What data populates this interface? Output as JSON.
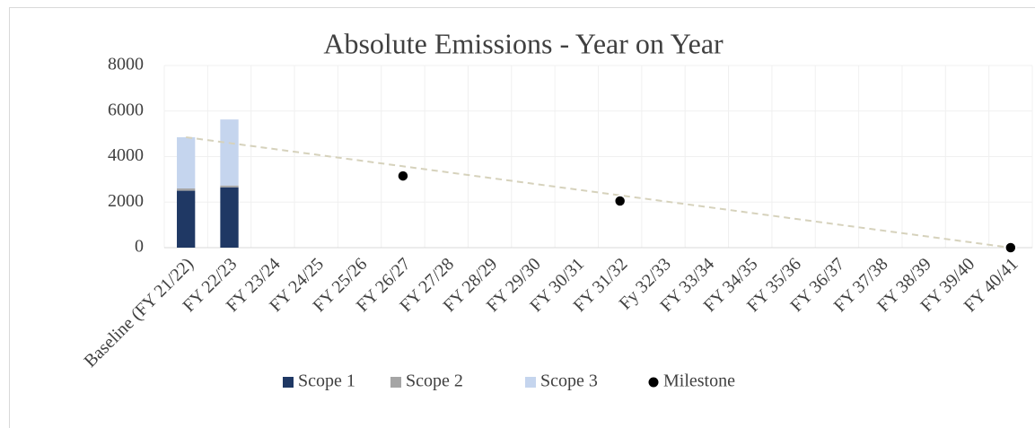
{
  "chart_data": {
    "type": "bar",
    "stacked": true,
    "title": "Absolute Emissions - Year on Year",
    "categories": [
      "Baseline (FY 21/22)",
      "FY 22/23",
      "FY 23/24",
      "FY 24/25",
      "FY 25/26",
      "FY 26/27",
      "FY 27/28",
      "FY 28/29",
      "FY 29/30",
      "FY 30/31",
      "FY 31/32",
      "Fy 32/33",
      "FY 33/34",
      "FY 34/35",
      "FY 35/36",
      "FY 36/37",
      "FY 37/38",
      "FY 38/39",
      "FY 39/40",
      "FY 40/41"
    ],
    "series": [
      {
        "name": "Scope 1",
        "color": "#1f3864",
        "values": [
          2500,
          2650,
          null,
          null,
          null,
          null,
          null,
          null,
          null,
          null,
          null,
          null,
          null,
          null,
          null,
          null,
          null,
          null,
          null,
          null
        ]
      },
      {
        "name": "Scope 2",
        "color": "#a5a5a5",
        "values": [
          100,
          80,
          null,
          null,
          null,
          null,
          null,
          null,
          null,
          null,
          null,
          null,
          null,
          null,
          null,
          null,
          null,
          null,
          null,
          null
        ]
      },
      {
        "name": "Scope 3",
        "color": "#c5d5ee",
        "values": [
          2250,
          2900,
          null,
          null,
          null,
          null,
          null,
          null,
          null,
          null,
          null,
          null,
          null,
          null,
          null,
          null,
          null,
          null,
          null,
          null
        ]
      },
      {
        "name": "Milestone",
        "color": "#000000",
        "type": "scatter",
        "values": [
          null,
          null,
          null,
          null,
          null,
          3150,
          null,
          null,
          null,
          null,
          2050,
          null,
          null,
          null,
          null,
          null,
          null,
          null,
          null,
          0
        ]
      }
    ],
    "trend_line": {
      "color": "#d6d2bc",
      "start": 4850,
      "end": 0
    },
    "ylim": [
      0,
      8000
    ],
    "yticks": [
      0,
      2000,
      4000,
      6000,
      8000
    ],
    "grid": true,
    "legend": "bottom"
  }
}
